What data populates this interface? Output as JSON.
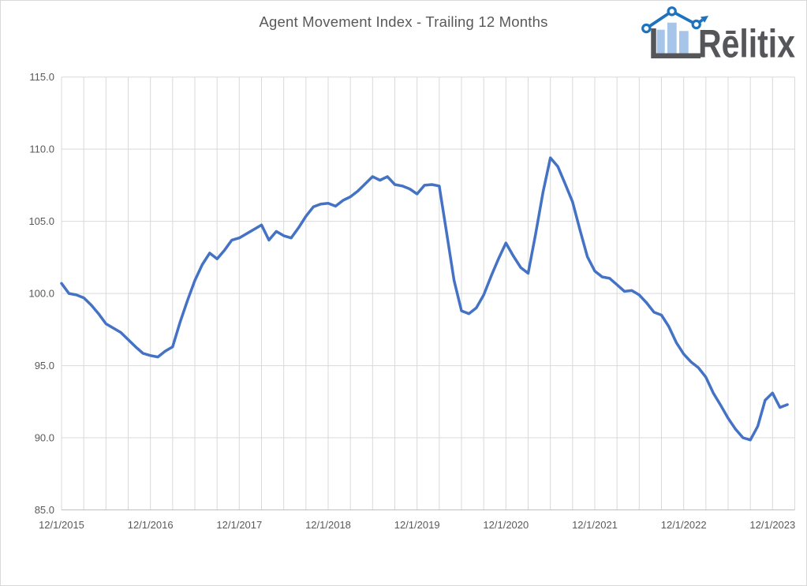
{
  "chart": {
    "title": "Agent Movement Index - Trailing 12 Months",
    "colors": {
      "series_line": "#4472C4",
      "gridline": "#D9D9D9",
      "axis_line": "#BFBFBF",
      "tick_label": "#595959",
      "title": "#595959"
    },
    "y_axis": {
      "min": 85,
      "max": 115,
      "step": 5,
      "tick_labels": [
        "115.0",
        "110.0",
        "105.0",
        "100.0",
        "95.0",
        "90.0",
        "85.0"
      ]
    },
    "x_axis": {
      "tick_labels": [
        "12/1/2015",
        "12/1/2016",
        "12/1/2017",
        "12/1/2018",
        "12/1/2019",
        "12/1/2020",
        "12/1/2021",
        "12/1/2022",
        "12/1/2023"
      ],
      "months_between_labels": 12,
      "months_between_gridlines": 3
    }
  },
  "chart_data": {
    "type": "line",
    "title": "Agent Movement Index - Trailing 12 Months",
    "ylim": [
      85,
      115
    ],
    "grid": "major horizontal every 5 units; vertical every 3 months",
    "legend": "none",
    "series_color": "#4472C4",
    "x": [
      "12/1/2015",
      "1/1/2016",
      "2/1/2016",
      "3/1/2016",
      "4/1/2016",
      "5/1/2016",
      "6/1/2016",
      "7/1/2016",
      "8/1/2016",
      "9/1/2016",
      "10/1/2016",
      "11/1/2016",
      "12/1/2016",
      "1/1/2017",
      "2/1/2017",
      "3/1/2017",
      "4/1/2017",
      "5/1/2017",
      "6/1/2017",
      "7/1/2017",
      "8/1/2017",
      "9/1/2017",
      "10/1/2017",
      "11/1/2017",
      "12/1/2017",
      "1/1/2018",
      "2/1/2018",
      "3/1/2018",
      "4/1/2018",
      "5/1/2018",
      "6/1/2018",
      "7/1/2018",
      "8/1/2018",
      "9/1/2018",
      "10/1/2018",
      "11/1/2018",
      "12/1/2018",
      "1/1/2019",
      "2/1/2019",
      "3/1/2019",
      "4/1/2019",
      "5/1/2019",
      "6/1/2019",
      "7/1/2019",
      "8/1/2019",
      "9/1/2019",
      "10/1/2019",
      "11/1/2019",
      "12/1/2019",
      "1/1/2020",
      "2/1/2020",
      "3/1/2020",
      "4/1/2020",
      "5/1/2020",
      "6/1/2020",
      "7/1/2020",
      "8/1/2020",
      "9/1/2020",
      "10/1/2020",
      "11/1/2020",
      "12/1/2020",
      "1/1/2021",
      "2/1/2021",
      "3/1/2021",
      "4/1/2021",
      "5/1/2021",
      "6/1/2021",
      "7/1/2021",
      "8/1/2021",
      "9/1/2021",
      "10/1/2021",
      "11/1/2021",
      "12/1/2021",
      "1/1/2022",
      "2/1/2022",
      "3/1/2022",
      "4/1/2022",
      "5/1/2022",
      "6/1/2022",
      "7/1/2022",
      "8/1/2022",
      "9/1/2022",
      "10/1/2022",
      "11/1/2022",
      "12/1/2022",
      "1/1/2023",
      "2/1/2023",
      "3/1/2023",
      "4/1/2023",
      "5/1/2023",
      "6/1/2023",
      "7/1/2023",
      "8/1/2023",
      "9/1/2023",
      "10/1/2023",
      "11/1/2023",
      "12/1/2023",
      "1/1/2024",
      "2/1/2024"
    ],
    "values": [
      100.7,
      100.0,
      99.9,
      99.7,
      99.2,
      98.6,
      97.9,
      97.6,
      97.3,
      96.8,
      96.3,
      95.85,
      95.7,
      95.6,
      96.0,
      96.3,
      98.0,
      99.5,
      100.9,
      102.0,
      102.8,
      102.4,
      103.0,
      103.7,
      103.85,
      104.15,
      104.45,
      104.75,
      103.7,
      104.3,
      104.0,
      103.85,
      104.55,
      105.35,
      106.0,
      106.2,
      106.25,
      106.05,
      106.45,
      106.7,
      107.1,
      107.6,
      108.1,
      107.85,
      108.1,
      107.55,
      107.45,
      107.25,
      106.9,
      107.5,
      107.55,
      107.45,
      104.2,
      100.9,
      98.8,
      98.6,
      99.0,
      99.9,
      101.2,
      102.4,
      103.5,
      102.6,
      101.8,
      101.4,
      104.1,
      107.0,
      109.4,
      108.8,
      107.6,
      106.35,
      104.4,
      102.55,
      101.55,
      101.15,
      101.05,
      100.6,
      100.15,
      100.2,
      99.9,
      99.35,
      98.7,
      98.5,
      97.7,
      96.6,
      95.8,
      95.25,
      94.85,
      94.2,
      93.1,
      92.25,
      91.35,
      90.6,
      90.0,
      89.85,
      90.8,
      92.6,
      93.1,
      92.1,
      92.3
    ]
  },
  "logo": {
    "text": "Rēlitix",
    "colors": {
      "trend_line": "#1E73BE",
      "bars": "#A6C5E8",
      "frame_and_text": "#55565A"
    }
  }
}
